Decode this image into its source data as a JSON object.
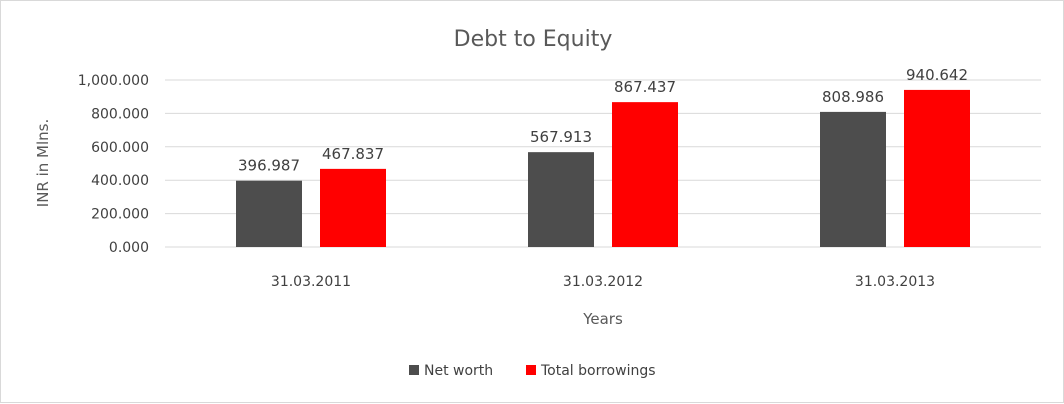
{
  "chart_data": {
    "type": "bar",
    "title": "Debt to Equity",
    "xlabel": "Years",
    "ylabel": "INR in Mlns.",
    "categories": [
      "31.03.2011",
      "31.03.2012",
      "31.03.2013"
    ],
    "series": [
      {
        "name": "Net worth",
        "color": "#4d4d4d",
        "values": [
          396.987,
          567.913,
          808.986
        ],
        "labels": [
          "396.987",
          "567.913",
          "808.986"
        ]
      },
      {
        "name": "Total borrowings",
        "color": "#ff0000",
        "values": [
          467.837,
          867.437,
          940.642
        ],
        "labels": [
          "467.837",
          "867.437",
          "940.642"
        ]
      }
    ],
    "ylim": [
      0,
      1000
    ],
    "yticks": [
      0,
      200,
      400,
      600,
      800,
      1000
    ],
    "ytick_labels": [
      "0.000",
      "200.000",
      "400.000",
      "600.000",
      "800.000",
      "1,000.000"
    ],
    "grid": true,
    "legend_position": "bottom"
  }
}
